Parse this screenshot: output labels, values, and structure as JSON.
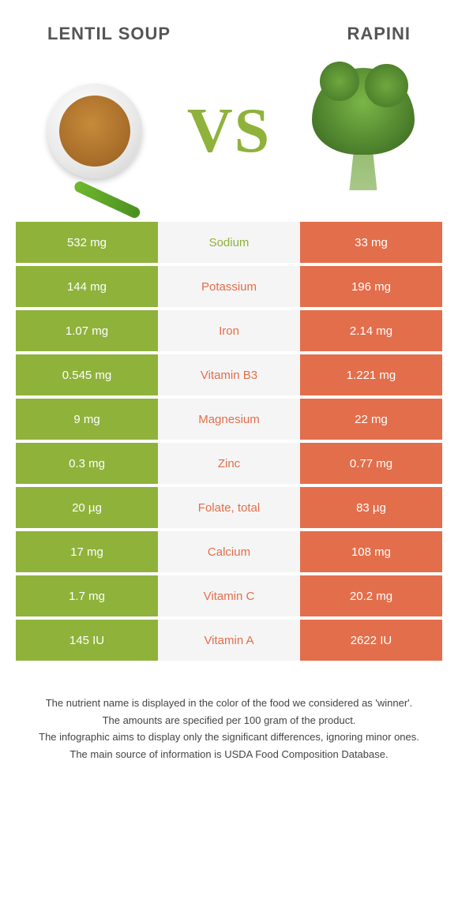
{
  "colors": {
    "green": "#8fb23b",
    "orange": "#e36e4b",
    "mid_bg": "#f5f5f5"
  },
  "header": {
    "left_title": "LENTIL SOUP",
    "right_title": "RAPINI",
    "vs": "VS"
  },
  "rows": [
    {
      "nutrient": "Sodium",
      "left": "532 mg",
      "right": "33 mg",
      "winner": "left"
    },
    {
      "nutrient": "Potassium",
      "left": "144 mg",
      "right": "196 mg",
      "winner": "right"
    },
    {
      "nutrient": "Iron",
      "left": "1.07 mg",
      "right": "2.14 mg",
      "winner": "right"
    },
    {
      "nutrient": "Vitamin B3",
      "left": "0.545 mg",
      "right": "1.221 mg",
      "winner": "right"
    },
    {
      "nutrient": "Magnesium",
      "left": "9 mg",
      "right": "22 mg",
      "winner": "right"
    },
    {
      "nutrient": "Zinc",
      "left": "0.3 mg",
      "right": "0.77 mg",
      "winner": "right"
    },
    {
      "nutrient": "Folate, total",
      "left": "20 µg",
      "right": "83 µg",
      "winner": "right"
    },
    {
      "nutrient": "Calcium",
      "left": "17 mg",
      "right": "108 mg",
      "winner": "right"
    },
    {
      "nutrient": "Vitamin C",
      "left": "1.7 mg",
      "right": "20.2 mg",
      "winner": "right"
    },
    {
      "nutrient": "Vitamin A",
      "left": "145 IU",
      "right": "2622 IU",
      "winner": "right"
    }
  ],
  "footer": {
    "line1": "The nutrient name is displayed in the color of the food we considered as 'winner'.",
    "line2": "The amounts are specified per 100 gram of the product.",
    "line3": "The infographic aims to display only the significant differences, ignoring minor ones.",
    "line4": "The main source of information is USDA Food Composition Database."
  }
}
